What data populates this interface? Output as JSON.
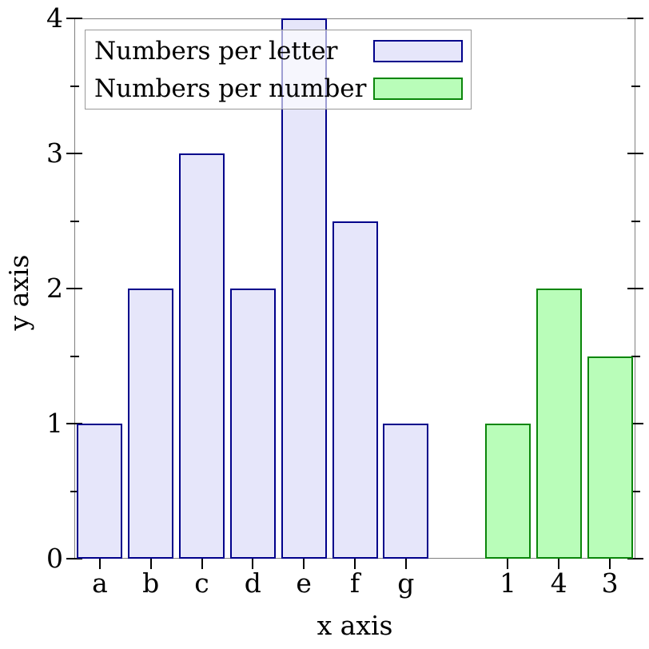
{
  "figure": {
    "background": "#ffffff"
  },
  "chart_data": {
    "type": "bar",
    "title": "",
    "xlabel": "x axis",
    "ylabel": "y axis",
    "ylim": [
      0,
      4
    ],
    "y_major_ticks": [
      0,
      1,
      2,
      3,
      4
    ],
    "y_minor_tick_step": 0.5,
    "x_slot_count": 11,
    "grid": false,
    "legend_position": "top-left",
    "series": [
      {
        "name": "Numbers per letter",
        "categories": [
          "a",
          "b",
          "c",
          "d",
          "e",
          "f",
          "g"
        ],
        "values": [
          1,
          2,
          3,
          2,
          4,
          2.5,
          1
        ],
        "slots": [
          0,
          1,
          2,
          3,
          4,
          5,
          6
        ],
        "fill": "#e6e6fa",
        "stroke": "#00008b"
      },
      {
        "name": "Numbers per number",
        "categories": [
          "1",
          "4",
          "3"
        ],
        "values": [
          1,
          2,
          1.5
        ],
        "slots": [
          8,
          9,
          10
        ],
        "fill": "#b9fdb9",
        "stroke": "#0a860a"
      }
    ],
    "colors": {
      "axis_frame": "#808080",
      "tick": "#000000",
      "legend_border": "#999999",
      "text": "#000000"
    }
  }
}
